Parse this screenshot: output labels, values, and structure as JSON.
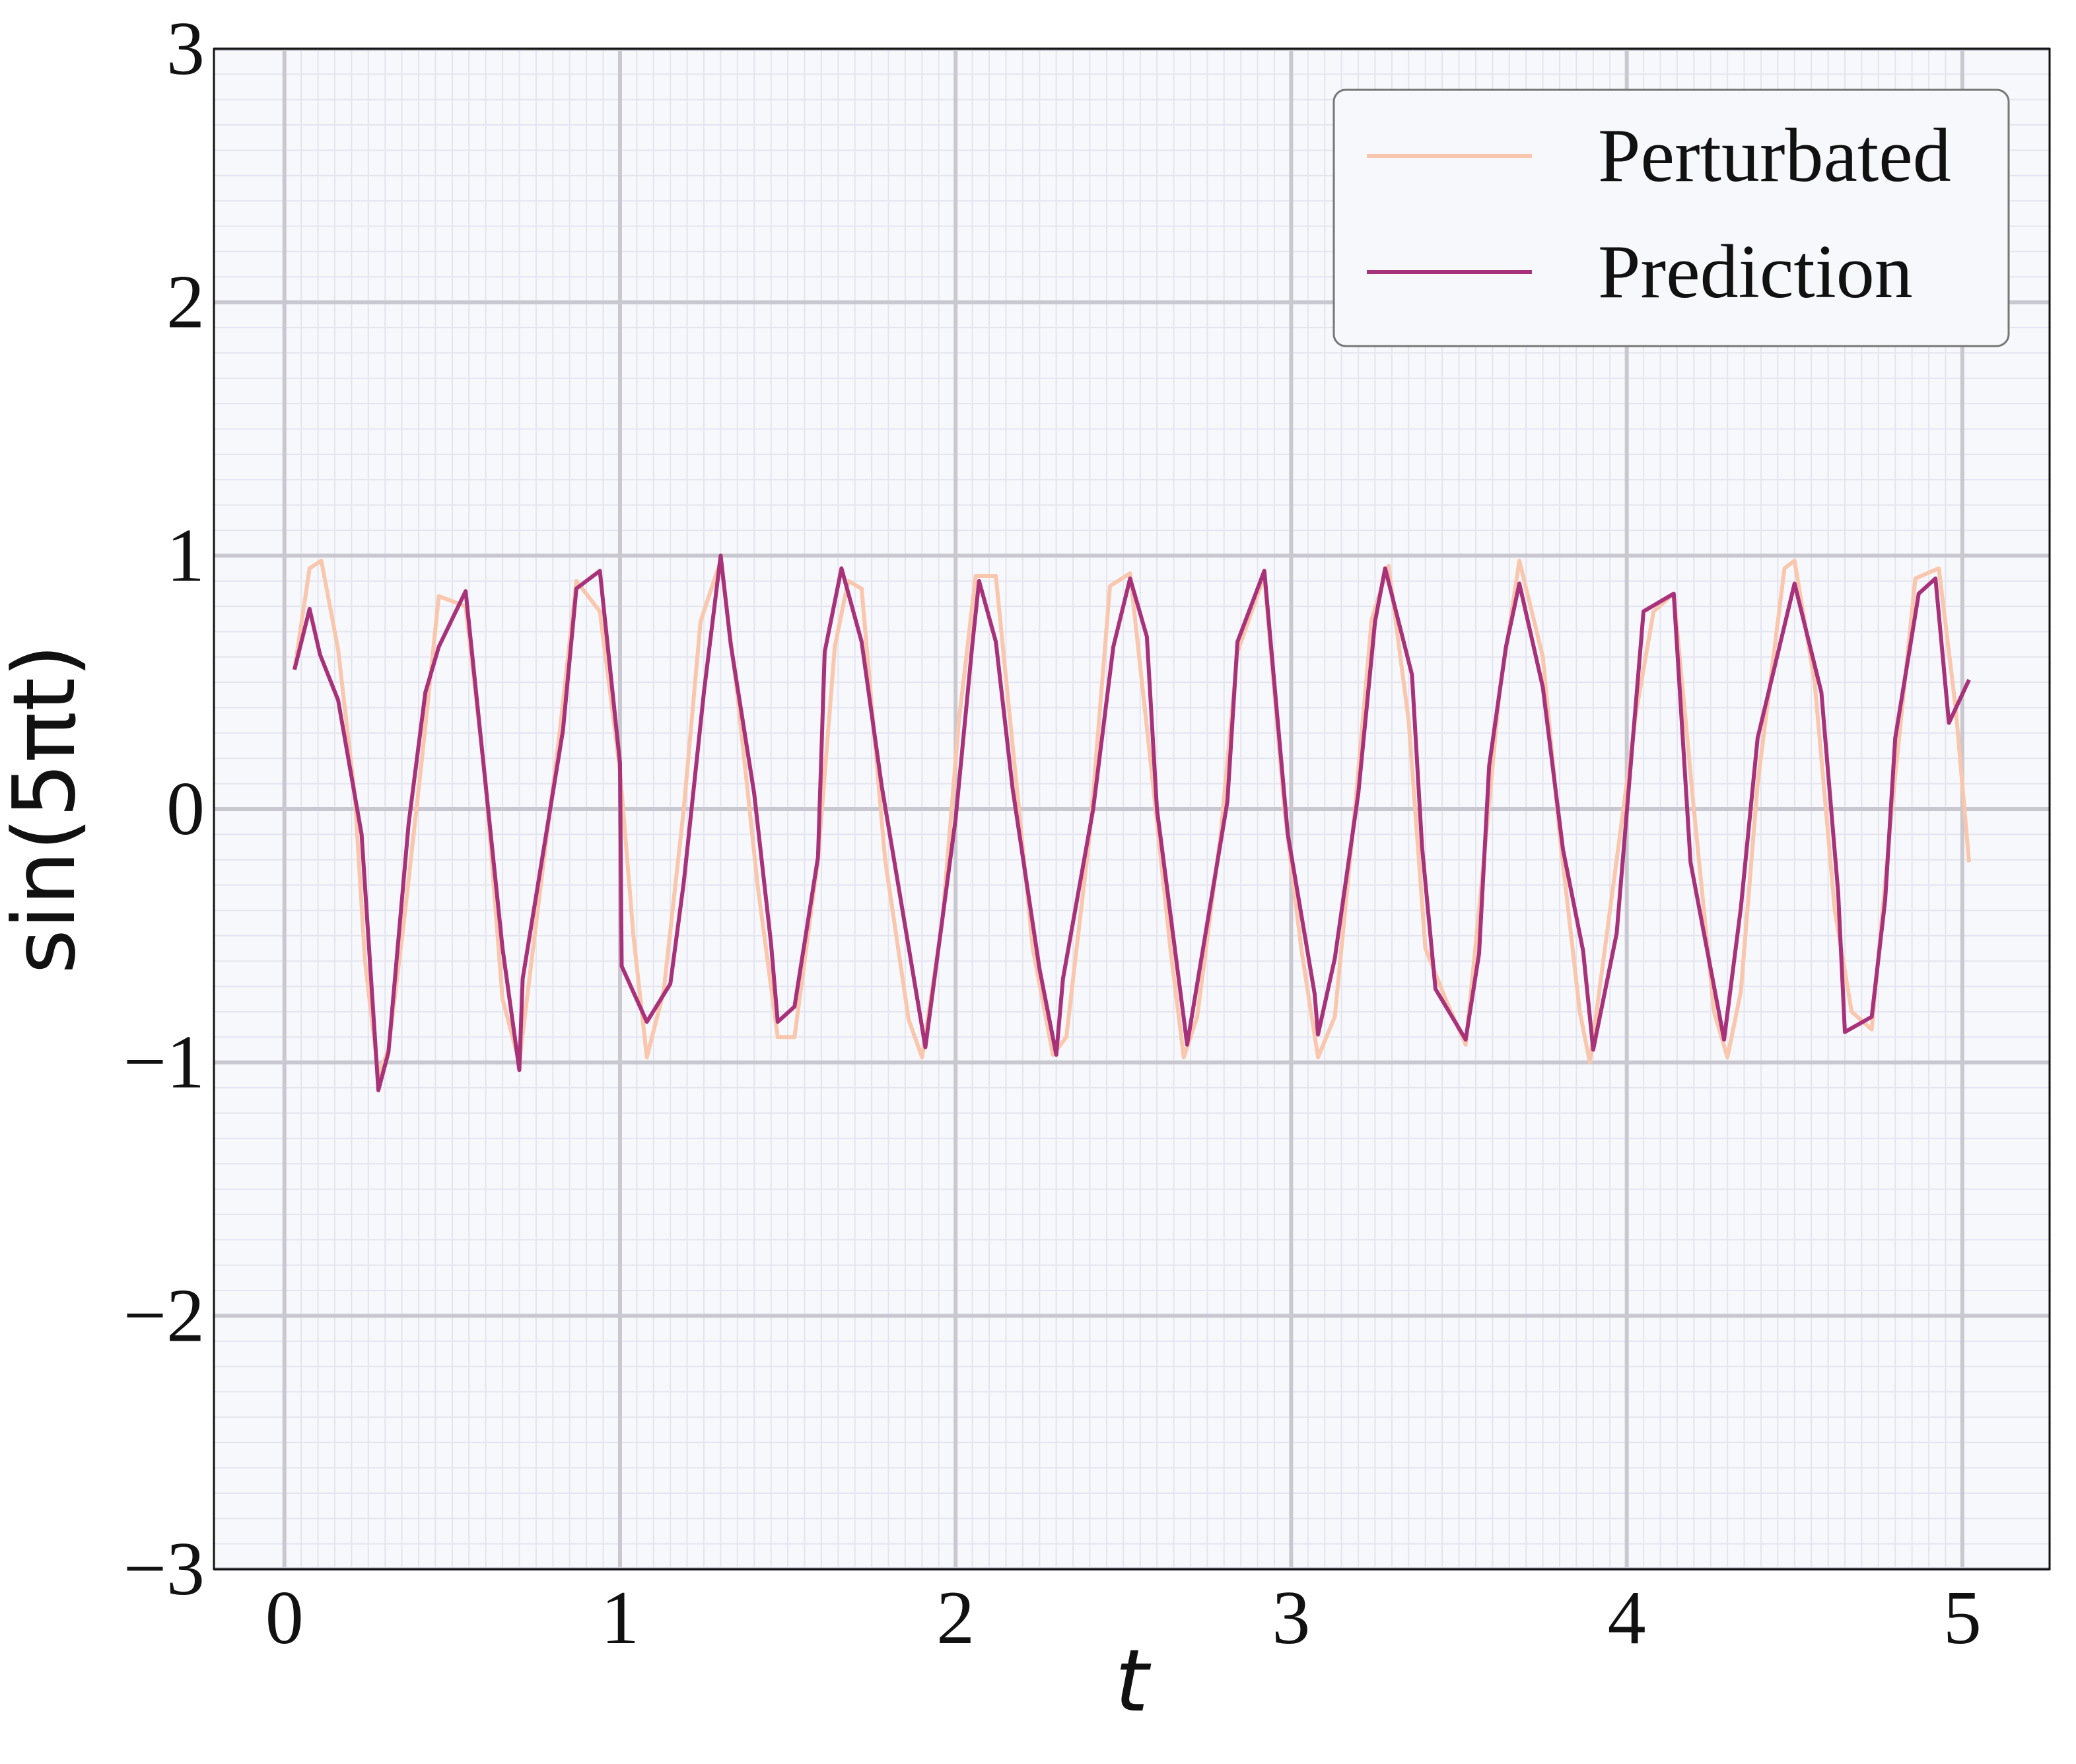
{
  "chart_data": {
    "type": "line",
    "xlabel": "t",
    "ylabel": "sin(5πt)",
    "xlim": [
      -0.21,
      5.26
    ],
    "ylim": [
      -3,
      3
    ],
    "xticks": [
      0,
      1,
      2,
      3,
      4,
      5
    ],
    "yticks": [
      {
        "value": -3,
        "label": "−3"
      },
      {
        "value": -2,
        "label": "−2"
      },
      {
        "value": -1,
        "label": "−1"
      },
      0,
      1,
      2,
      3
    ],
    "grid": true,
    "legend": "upper right",
    "series": [
      {
        "name": "Perturbated",
        "color": "#f9c6ae",
        "x": [
          0.03,
          0.075,
          0.11,
          0.16,
          0.21,
          0.24,
          0.28,
          0.31,
          0.36,
          0.41,
          0.46,
          0.54,
          0.6,
          0.65,
          0.7,
          0.75,
          0.82,
          0.87,
          0.94,
          1.0,
          1.04,
          1.08,
          1.13,
          1.19,
          1.24,
          1.3,
          1.35,
          1.41,
          1.47,
          1.52,
          1.59,
          1.64,
          1.68,
          1.72,
          1.79,
          1.86,
          1.9,
          1.96,
          2.01,
          2.06,
          2.12,
          2.17,
          2.23,
          2.29,
          2.33,
          2.4,
          2.46,
          2.52,
          2.58,
          2.64,
          2.68,
          2.72,
          2.79,
          2.84,
          2.92,
          2.98,
          3.03,
          3.08,
          3.13,
          3.19,
          3.24,
          3.29,
          3.35,
          3.4,
          3.46,
          3.52,
          3.56,
          3.62,
          3.68,
          3.75,
          3.8,
          3.86,
          3.89,
          3.94,
          4.03,
          4.08,
          4.14,
          4.2,
          4.26,
          4.3,
          4.34,
          4.39,
          4.47,
          4.5,
          4.56,
          4.62,
          4.67,
          4.73,
          4.79,
          4.86,
          4.93,
          4.98,
          5.02
        ],
        "values": [
          0.55,
          0.95,
          0.98,
          0.63,
          0.05,
          -0.6,
          -1.05,
          -0.95,
          -0.4,
          0.2,
          0.84,
          0.8,
          0.1,
          -0.75,
          -1.0,
          -0.45,
          0.3,
          0.9,
          0.78,
          0.15,
          -0.5,
          -0.98,
          -0.72,
          0.0,
          0.74,
          0.98,
          0.45,
          -0.3,
          -0.9,
          -0.9,
          -0.2,
          0.64,
          0.9,
          0.87,
          -0.2,
          -0.83,
          -0.98,
          -0.45,
          0.35,
          0.92,
          0.92,
          0.25,
          -0.55,
          -0.97,
          -0.9,
          -0.1,
          0.88,
          0.93,
          0.2,
          -0.55,
          -0.98,
          -0.82,
          -0.1,
          0.62,
          0.92,
          0.0,
          -0.55,
          -0.98,
          -0.82,
          0.0,
          0.75,
          0.96,
          0.35,
          -0.55,
          -0.75,
          -0.93,
          -0.4,
          0.45,
          0.98,
          0.6,
          -0.1,
          -0.8,
          -1.0,
          -0.5,
          0.4,
          0.78,
          0.85,
          0.0,
          -0.8,
          -0.98,
          -0.72,
          0.1,
          0.95,
          0.98,
          0.5,
          -0.4,
          -0.8,
          -0.87,
          0.0,
          0.91,
          0.95,
          0.4,
          -0.21
        ]
      },
      {
        "name": "Prediction",
        "color": "#a8327a",
        "x": [
          0.03,
          0.075,
          0.106,
          0.16,
          0.23,
          0.28,
          0.31,
          0.37,
          0.42,
          0.46,
          0.54,
          0.65,
          0.7,
          0.71,
          0.83,
          0.87,
          0.94,
          1.0,
          1.005,
          1.08,
          1.15,
          1.19,
          1.25,
          1.3,
          1.33,
          1.4,
          1.45,
          1.47,
          1.52,
          1.59,
          1.61,
          1.66,
          1.72,
          1.78,
          1.91,
          2.0,
          2.05,
          2.07,
          2.12,
          2.17,
          2.25,
          2.3,
          2.32,
          2.41,
          2.47,
          2.52,
          2.57,
          2.6,
          2.69,
          2.81,
          2.84,
          2.92,
          2.99,
          3.07,
          3.08,
          3.13,
          3.2,
          3.25,
          3.28,
          3.36,
          3.39,
          3.43,
          3.52,
          3.56,
          3.59,
          3.64,
          3.68,
          3.75,
          3.81,
          3.87,
          3.9,
          3.97,
          4.05,
          4.14,
          4.19,
          4.29,
          4.34,
          4.39,
          4.5,
          4.58,
          4.63,
          4.65,
          4.73,
          4.77,
          4.8,
          4.87,
          4.92,
          4.96,
          5.02
        ],
        "values": [
          0.55,
          0.79,
          0.61,
          0.43,
          -0.1,
          -1.11,
          -0.96,
          -0.06,
          0.46,
          0.64,
          0.86,
          -0.55,
          -1.03,
          -0.67,
          0.31,
          0.87,
          0.94,
          0.18,
          -0.62,
          -0.84,
          -0.69,
          -0.29,
          0.46,
          1.0,
          0.65,
          0.06,
          -0.53,
          -0.84,
          -0.78,
          -0.19,
          0.62,
          0.95,
          0.66,
          0.09,
          -0.94,
          -0.04,
          0.65,
          0.9,
          0.66,
          0.08,
          -0.63,
          -0.97,
          -0.67,
          0.0,
          0.64,
          0.91,
          0.68,
          0.0,
          -0.93,
          0.03,
          0.66,
          0.94,
          -0.1,
          -0.73,
          -0.89,
          -0.59,
          0.06,
          0.74,
          0.95,
          0.53,
          -0.15,
          -0.71,
          -0.91,
          -0.57,
          0.17,
          0.64,
          0.89,
          0.48,
          -0.16,
          -0.56,
          -0.95,
          -0.49,
          0.78,
          0.85,
          -0.21,
          -0.91,
          -0.39,
          0.28,
          0.89,
          0.46,
          -0.33,
          -0.88,
          -0.82,
          -0.36,
          0.28,
          0.85,
          0.91,
          0.34,
          0.51
        ]
      }
    ]
  }
}
